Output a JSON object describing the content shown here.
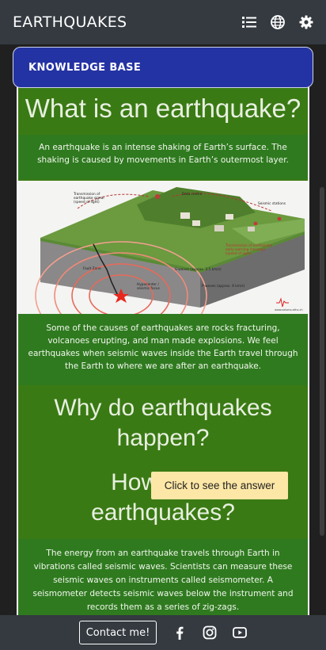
{
  "navbar": {
    "brand": "EARTHQUAKES",
    "icons": [
      "list-icon",
      "globe-icon",
      "gear-icon"
    ]
  },
  "knowledge_base": {
    "label": "KNOWLEDGE BASE"
  },
  "sections": {
    "what_title": "What is an earthquake?",
    "what_text": "An earthquake is an intense shaking of Earth’s surface. The shaking is caused by movements in Earth’s outermost layer.",
    "causes_text": "Some of the causes of earthquakes are rocks fracturing, volcanoes erupting, and man made explosions. We feel earthquakes when seismic waves inside the Earth travel through the Earth to where we are after an earthquake.",
    "why_title": "Why do earthquakes happen?",
    "how_title_start": "How do w",
    "how_title_end": "earthquakes?",
    "how_text": "The energy from an earthquake travels through Earth in vibrations called seismic waves. Scientists can measure these seismic waves on instruments called seismometer. A seismometer detects seismic waves below the instrument and records them as a series of zig-zags."
  },
  "diagram": {
    "labels": {
      "transmission_signal": "Transmission of earthquake signal (speed of light)",
      "data_centre": "Data centre",
      "seismic_stations": "Seismic stations",
      "early_warning": "Transmission of earthquake early warning message (speed of light)",
      "fault_zone": "Fault Zone",
      "s_waves": "S-waves (approx. 3.5 km/s)",
      "p_waves": "P-waves (approx. 6 km/s)",
      "hypocenter": "Hypocenter / seismic focus",
      "credit": "www.seismo.ethz.ch"
    }
  },
  "tooltip": {
    "text": "Click to see the answer"
  },
  "footer": {
    "contact_label": "Contact me!",
    "icons": [
      "facebook-icon",
      "instagram-icon",
      "youtube-icon"
    ]
  },
  "colors": {
    "navbar": "#343a40",
    "kb_bar": "#2433a3",
    "panel_green": "#3a7a14",
    "tooltip": "#fde7a6"
  }
}
